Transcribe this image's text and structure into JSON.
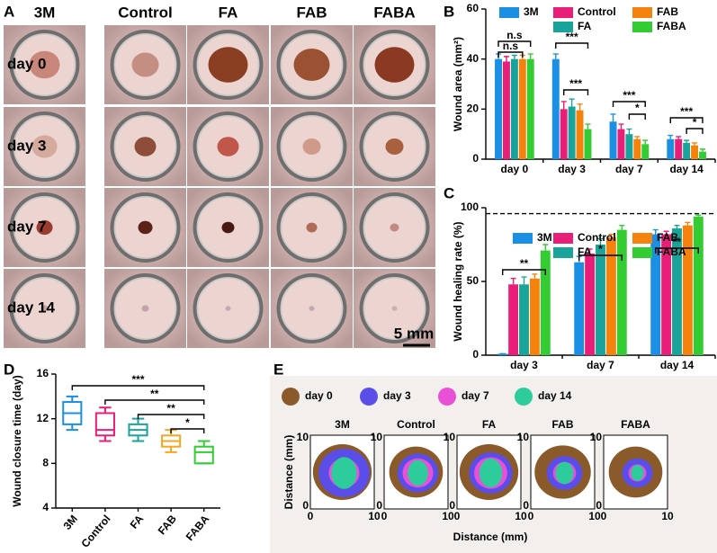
{
  "figure_labels": [
    "A",
    "B",
    "C",
    "D",
    "E"
  ],
  "photo_grid": {
    "columns": [
      "3M",
      "Control",
      "FA",
      "FAB",
      "FABA"
    ],
    "rows": [
      "day 0",
      "day 3",
      "day 7",
      "day 14"
    ],
    "scale_bar": "5 mm"
  },
  "chart_data": [
    {
      "type": "bar",
      "ylabel": "Wound area (mm²)",
      "categories": [
        "day 0",
        "day 3",
        "day 7",
        "day 14"
      ],
      "series": [
        {
          "name": "3M",
          "color": "#1a8fe3",
          "values": [
            40,
            40,
            15,
            8
          ],
          "errors": [
            2,
            2,
            3,
            1.5
          ]
        },
        {
          "name": "Control",
          "color": "#e91e78",
          "values": [
            39,
            20,
            12,
            8
          ],
          "errors": [
            2,
            3,
            2,
            1
          ]
        },
        {
          "name": "FA",
          "color": "#1aa39a",
          "values": [
            40,
            21,
            10,
            6.5
          ],
          "errors": [
            1.5,
            3,
            2,
            1
          ]
        },
        {
          "name": "FAB",
          "color": "#f5820d",
          "values": [
            40,
            19.5,
            8,
            5.5
          ],
          "errors": [
            1.5,
            2.5,
            1,
            1
          ]
        },
        {
          "name": "FABA",
          "color": "#33cc33",
          "values": [
            40,
            12,
            6,
            3
          ],
          "errors": [
            2,
            2,
            1.5,
            1
          ]
        }
      ],
      "ylim": [
        0,
        60
      ],
      "yticks": [
        0,
        20,
        40,
        60
      ],
      "annotations": [
        "n.s",
        "n.s",
        "***",
        "***",
        "***",
        "*",
        "***",
        "*"
      ]
    },
    {
      "type": "bar",
      "ylabel": "Wound healing rate (%)",
      "categories": [
        "day 3",
        "day 7",
        "day 14"
      ],
      "series": [
        {
          "name": "3M",
          "color": "#1a8fe3",
          "values": [
            1,
            63,
            82
          ],
          "errors": [
            0,
            4,
            3
          ]
        },
        {
          "name": "Control",
          "color": "#e91e78",
          "values": [
            48,
            69,
            82
          ],
          "errors": [
            4,
            3,
            2
          ]
        },
        {
          "name": "FA",
          "color": "#1aa39a",
          "values": [
            48,
            75,
            86
          ],
          "errors": [
            5,
            4,
            2
          ]
        },
        {
          "name": "FAB",
          "color": "#f5820d",
          "values": [
            52,
            80,
            88
          ],
          "errors": [
            3,
            2,
            2
          ]
        },
        {
          "name": "FABA",
          "color": "#33cc33",
          "values": [
            71,
            85,
            94
          ],
          "errors": [
            4,
            3,
            1
          ]
        }
      ],
      "ylim": [
        0,
        100
      ],
      "yticks": [
        0,
        50,
        100
      ],
      "reference_line": 96,
      "annotations": [
        "**",
        "*",
        "**"
      ]
    },
    {
      "type": "box",
      "ylabel": "Wound closure time (day)",
      "categories": [
        "3M",
        "Control",
        "FA",
        "FAB",
        "FABA"
      ],
      "colors": [
        "#1a8fe3",
        "#e91e78",
        "#1aa39a",
        "#f5a623",
        "#33cc33"
      ],
      "boxes": [
        {
          "min": 11,
          "q1": 11.5,
          "median": 12.5,
          "q3": 13.5,
          "max": 14
        },
        {
          "min": 10,
          "q1": 10.5,
          "median": 11,
          "q3": 12.5,
          "max": 13
        },
        {
          "min": 10,
          "q1": 10.5,
          "median": 11,
          "q3": 11.5,
          "max": 12
        },
        {
          "min": 9,
          "q1": 9.5,
          "median": 10,
          "q3": 10.5,
          "max": 11
        },
        {
          "min": 8,
          "q1": 8,
          "median": 9,
          "q3": 9.5,
          "max": 10
        }
      ],
      "ylim": [
        4,
        16
      ],
      "yticks": [
        4,
        8,
        12,
        16
      ],
      "annotations": [
        "***",
        "**",
        "**",
        "*"
      ]
    }
  ],
  "contour_plots": {
    "legend": [
      {
        "name": "day 0",
        "color": "#8b5a2b"
      },
      {
        "name": "day 3",
        "color": "#5b4ee8"
      },
      {
        "name": "day 7",
        "color": "#ea4fd8"
      },
      {
        "name": "day 14",
        "color": "#2ecc9a"
      }
    ],
    "panels": [
      "3M",
      "Control",
      "FA",
      "FAB",
      "FABA"
    ],
    "xlabel": "Distance (mm)",
    "ylabel": "Distance (mm)",
    "xticks": [
      0,
      10
    ],
    "yticks": [
      0,
      10
    ]
  }
}
